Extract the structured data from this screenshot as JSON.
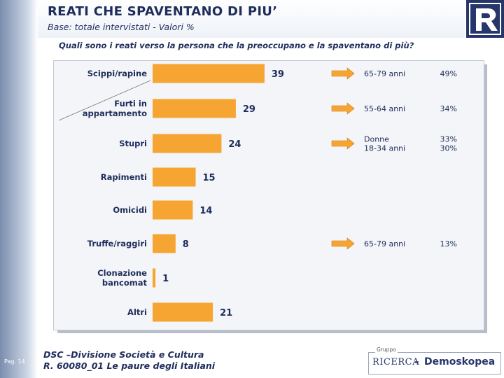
{
  "header": {
    "title": "REATI CHE SPAVENTANO DI PIU’",
    "subtitle": "Base: totale intervistati - Valori %",
    "question": "Quali sono i reati verso la persona che la preoccupano e la spaventano di più?"
  },
  "chart_data": {
    "type": "bar",
    "orientation": "horizontal",
    "categories": [
      "Scippi/rapine",
      "Furti in appartamento",
      "Stupri",
      "Rapimenti",
      "Omicidi",
      "Truffe/raggiri",
      "Clonazione bancomat",
      "Altri"
    ],
    "category_lines": [
      [
        "Scippi/rapine"
      ],
      [
        "Furti in",
        "appartamento"
      ],
      [
        "Stupri"
      ],
      [
        "Rapimenti"
      ],
      [
        "Omicidi"
      ],
      [
        "Truffe/raggiri"
      ],
      [
        "Clonazione",
        "bancomat"
      ],
      [
        "Altri"
      ]
    ],
    "values": [
      39,
      29,
      24,
      15,
      14,
      8,
      1,
      21
    ],
    "xlim": [
      0,
      40
    ],
    "bar_color": "#f7a532",
    "annotations": [
      {
        "category": "Scippi/rapine",
        "lines": [
          {
            "group": "65-79 anni",
            "value": "49%"
          }
        ]
      },
      {
        "category": "Furti in appartamento",
        "lines": [
          {
            "group": "55-64 anni",
            "value": "34%"
          }
        ]
      },
      {
        "category": "Stupri",
        "lines": [
          {
            "group": "Donne",
            "value": "33%"
          },
          {
            "group": "18-34 anni",
            "value": "30%"
          }
        ]
      },
      {
        "category": "Truffe/raggiri",
        "lines": [
          {
            "group": "65-79 anni",
            "value": "13%"
          }
        ]
      }
    ],
    "arrow_color": "#f7a532"
  },
  "footer": {
    "page": "Pag. 14",
    "line1": "DSC –Divisione Società e Cultura",
    "line2": "R. 60080_01 Le paure degli Italiani"
  },
  "brand": {
    "gruppo": "Gruppo",
    "ricerca": "RICERCA",
    "dash": "-",
    "name": "Demoskopea",
    "logo_letter": "R"
  }
}
